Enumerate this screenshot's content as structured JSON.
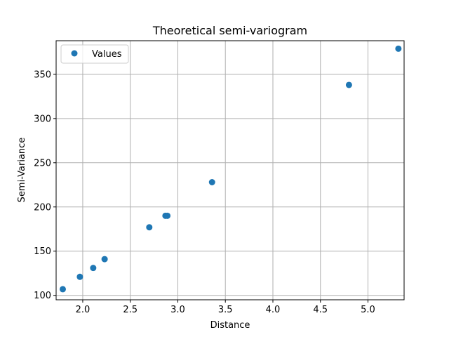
{
  "chart_data": {
    "type": "scatter",
    "title": "Theoretical semi-variogram",
    "xlabel": "Distance",
    "ylabel": "Semi-Variance",
    "xlim": [
      1.72,
      5.38
    ],
    "ylim": [
      95,
      388
    ],
    "xticks": [
      2.0,
      2.5,
      3.0,
      3.5,
      4.0,
      4.5,
      5.0
    ],
    "xtick_labels": [
      "2.0",
      "2.5",
      "3.0",
      "3.5",
      "4.0",
      "4.5",
      "5.0"
    ],
    "yticks": [
      100,
      150,
      200,
      250,
      300,
      350
    ],
    "ytick_labels": [
      "100",
      "150",
      "200",
      "250",
      "300",
      "350"
    ],
    "grid": true,
    "legend_position": "top-left",
    "series": [
      {
        "name": "Values",
        "color": "#1f77b4",
        "x": [
          1.79,
          1.97,
          2.11,
          2.23,
          2.7,
          2.87,
          2.89,
          3.36,
          4.8,
          5.32
        ],
        "y": [
          107,
          121,
          131,
          141,
          177,
          190,
          190,
          228,
          338,
          379
        ]
      }
    ]
  }
}
